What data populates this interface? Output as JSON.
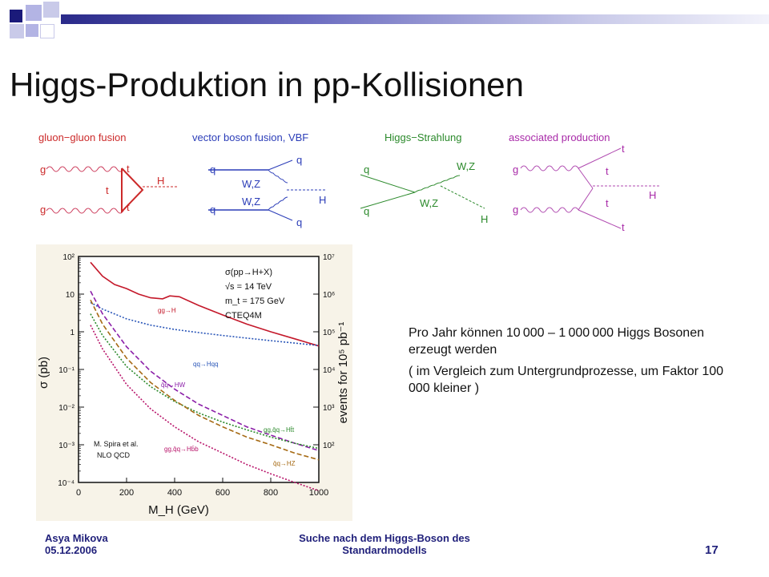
{
  "slide": {
    "title": "Higgs-Produktion in pp-Kollisionen",
    "colors": {
      "brand_dark": "#1a1a7a",
      "brand_light": "#9fa0d8",
      "feyn_header": "#cc2a2a",
      "feyn_header_blue": "#2b3db8"
    }
  },
  "diagrams": [
    {
      "header": "gluon−gluon fusion",
      "labels": [
        "g",
        "g",
        "t",
        "t",
        "t",
        "H"
      ]
    },
    {
      "header": "vector boson fusion, VBF",
      "labels": [
        "q",
        "q",
        "W,Z",
        "W,Z",
        "q",
        "q",
        "H"
      ]
    },
    {
      "header": "Higgs−Strahlung",
      "labels": [
        "q",
        "q",
        "W,Z",
        "W,Z",
        "H"
      ]
    },
    {
      "header": "associated production",
      "labels": [
        "g",
        "g",
        "t",
        "t",
        "t",
        "t",
        "H"
      ]
    }
  ],
  "plot_labels": {
    "info": [
      "σ(pp→H+X)",
      "√s = 14 TeV",
      "m_t = 175 GeV",
      "CTEQ4M"
    ],
    "credit": [
      "M. Spira et al.",
      "NLO  QCD"
    ],
    "curve_labels": [
      "gg→H",
      "qq→Hqq",
      "q̄q→HW",
      "gg,q̄q→Ht̄t",
      "gg,q̄q→Hb̄b",
      "q̄q→HZ"
    ]
  },
  "chart_data": {
    "type": "line",
    "xlabel": "M_H (GeV)",
    "ylabel": "σ (pb)",
    "ylabel_right": "events for 10⁵ pb⁻¹",
    "xlim": [
      0,
      1000
    ],
    "ylim_log10": [
      -4,
      2
    ],
    "x_ticks": [
      "0",
      "200",
      "400",
      "600",
      "800",
      "1000"
    ],
    "y_ticks_left": [
      "10⁻⁴",
      "10⁻³",
      "10⁻²",
      "10⁻¹",
      "1",
      "10",
      "10²"
    ],
    "y_ticks_right": [
      "10²",
      "10³",
      "10⁴",
      "10⁵",
      "10⁶",
      "10⁷"
    ],
    "log_scale": true,
    "series": [
      {
        "name": "gg→H",
        "color": "#c4182a",
        "style": "solid",
        "x": [
          50,
          100,
          150,
          200,
          250,
          300,
          350,
          380,
          420,
          500,
          600,
          700,
          800,
          900,
          1000
        ],
        "y": [
          70,
          30,
          18,
          14,
          10,
          8,
          7.5,
          9,
          8.5,
          5,
          2.8,
          1.6,
          1.0,
          0.65,
          0.42
        ]
      },
      {
        "name": "qq→Hqq",
        "color": "#2a56b8",
        "style": "dotted",
        "x": [
          50,
          100,
          200,
          300,
          400,
          500,
          600,
          700,
          800,
          900,
          1000
        ],
        "y": [
          6,
          4,
          2.2,
          1.5,
          1.15,
          0.95,
          0.8,
          0.68,
          0.58,
          0.5,
          0.43
        ]
      },
      {
        "name": "q̄q→HW",
        "color": "#8b1ea8",
        "style": "dashed",
        "x": [
          50,
          100,
          200,
          300,
          400,
          500,
          600,
          700,
          800,
          900,
          1000
        ],
        "y": [
          12,
          3,
          0.4,
          0.09,
          0.03,
          0.012,
          0.006,
          0.003,
          0.0018,
          0.0011,
          0.0007
        ]
      },
      {
        "name": "gg,q̄q→Ht̄t",
        "color": "#2c8a2c",
        "style": "dotted",
        "x": [
          50,
          100,
          200,
          300,
          400,
          500,
          600,
          700,
          800,
          900,
          1000
        ],
        "y": [
          3,
          0.8,
          0.12,
          0.035,
          0.014,
          0.007,
          0.004,
          0.0025,
          0.0016,
          0.0011,
          0.0008
        ]
      },
      {
        "name": "gg,q̄q→Hb̄b",
        "color": "#b8146a",
        "style": "dotted",
        "x": [
          50,
          100,
          200,
          300,
          400,
          500,
          600,
          700,
          800,
          900,
          1000
        ],
        "y": [
          1.5,
          0.35,
          0.04,
          0.009,
          0.003,
          0.0012,
          0.0006,
          0.0003,
          0.00017,
          0.0001,
          6e-05
        ]
      },
      {
        "name": "q̄q→HZ",
        "color": "#a66a14",
        "style": "dashed",
        "x": [
          50,
          100,
          200,
          300,
          400,
          500,
          600,
          700,
          800,
          900,
          1000
        ],
        "y": [
          7,
          1.6,
          0.2,
          0.045,
          0.015,
          0.006,
          0.003,
          0.0016,
          0.001,
          0.0006,
          0.0004
        ]
      }
    ]
  },
  "text": {
    "line1": "Pro Jahr können 10 000 – 1 000 000 Higgs Bosonen erzeugt werden",
    "line2": "( im Vergleich zum Untergrundprozesse, um Faktor 100 000 kleiner )"
  },
  "footer": {
    "author": "Asya Mikova",
    "date": "05.12.2006",
    "center_line1": "Suche nach dem Higgs-Boson des",
    "center_line2": "Standardmodells",
    "page": "17"
  }
}
